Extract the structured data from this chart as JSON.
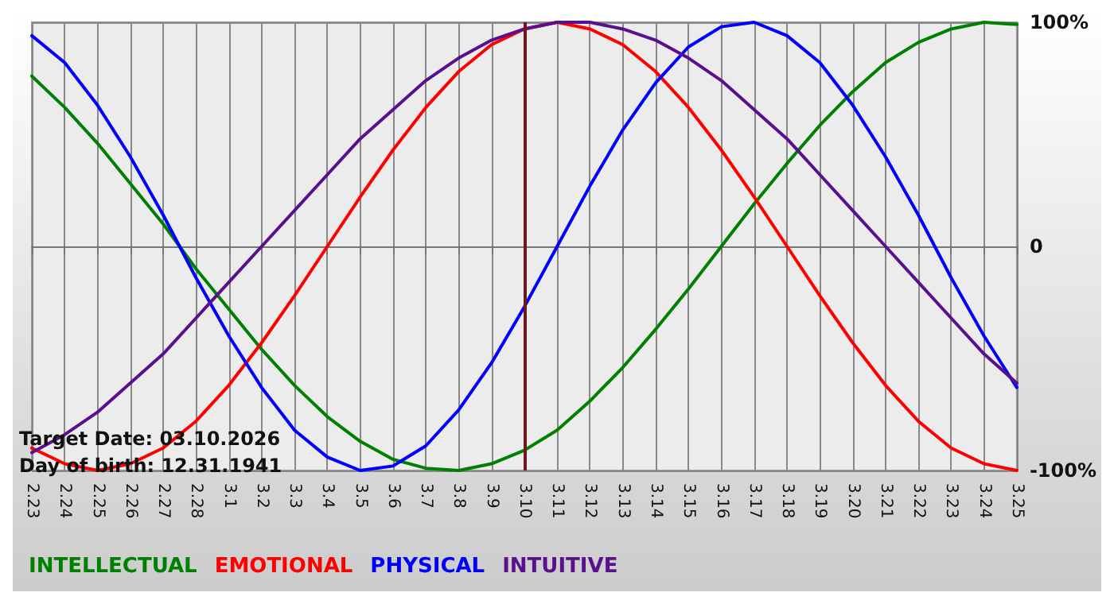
{
  "chart_data": {
    "type": "line",
    "categories": [
      "2.23",
      "2.24",
      "2.25",
      "2.26",
      "2.27",
      "2.28",
      "3.1",
      "3.2",
      "3.3",
      "3.4",
      "3.5",
      "3.6",
      "3.7",
      "3.8",
      "3.9",
      "3.10",
      "3.11",
      "3.12",
      "3.13",
      "3.14",
      "3.15",
      "3.16",
      "3.17",
      "3.18",
      "3.19",
      "3.20",
      "3.21",
      "3.22",
      "3.23",
      "3.24",
      "3.25"
    ],
    "series": [
      {
        "name": "INTELLECTUAL",
        "color": "#008000",
        "values": [
          76,
          62,
          46,
          28,
          10,
          -10,
          -28,
          -46,
          -62,
          -76,
          -87,
          -95,
          -99,
          -100,
          -97,
          -91,
          -82,
          -69,
          -54,
          -37,
          -19,
          0,
          19,
          37,
          54,
          69,
          82,
          91,
          97,
          100,
          99
        ]
      },
      {
        "name": "EMOTIONAL",
        "color": "#ff0000",
        "values": [
          -90,
          -97,
          -100,
          -97,
          -90,
          -78,
          -62,
          -43,
          -22,
          0,
          22,
          43,
          62,
          78,
          90,
          97,
          100,
          97,
          90,
          78,
          62,
          43,
          22,
          0,
          -22,
          -43,
          -62,
          -78,
          -90,
          -97,
          -100
        ]
      },
      {
        "name": "PHYSICAL",
        "color": "#0000ff",
        "values": [
          94,
          82,
          63,
          40,
          14,
          -14,
          -40,
          -63,
          -82,
          -94,
          -100,
          -98,
          -89,
          -73,
          -52,
          -27,
          0,
          27,
          52,
          73,
          89,
          98,
          100,
          94,
          82,
          63,
          40,
          14,
          -14,
          -40,
          -63
        ]
      },
      {
        "name": "INTUITIVE",
        "color": "#5a0f8c",
        "values": [
          -92,
          -84,
          -74,
          -61,
          -48,
          -32,
          -16,
          0,
          16,
          32,
          48,
          61,
          74,
          84,
          92,
          97,
          100,
          100,
          97,
          92,
          84,
          74,
          61,
          48,
          32,
          16,
          0,
          -16,
          -32,
          -48,
          -61
        ]
      }
    ],
    "ylim": [
      -100,
      100
    ],
    "yticks": [
      {
        "value": 100,
        "label": "100%"
      },
      0,
      {
        "value": -100,
        "label": "-100%"
      }
    ],
    "ref_lines": [
      {
        "axis": "x",
        "value": "3.10",
        "color": "#6b1a1a"
      }
    ],
    "annotations": [
      "Target Date: 03.10.2026",
      "Day of birth: 12.31.1941"
    ],
    "grid": true,
    "legend": "bottom left",
    "marker": "none",
    "line_style": "solid"
  }
}
